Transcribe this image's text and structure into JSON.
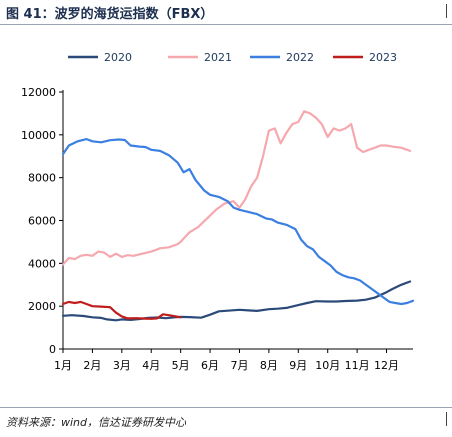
{
  "title": "图 41：波罗的海货运指数（FBX）",
  "source": "资料来源：wind，信达证券研发中心",
  "chart_data": {
    "type": "line",
    "title": "",
    "xlabel": "",
    "ylabel": "",
    "ylim": [
      0,
      12000
    ],
    "yticks": [
      0,
      2000,
      4000,
      6000,
      8000,
      10000,
      12000
    ],
    "xlim": [
      1,
      12.9
    ],
    "xticks": [
      1,
      2,
      3,
      4,
      5,
      6,
      7,
      8,
      9,
      10,
      11,
      12
    ],
    "xtick_labels": [
      "1月",
      "2月",
      "3月",
      "4月",
      "5月",
      "6月",
      "7月",
      "8月",
      "9月",
      "10月",
      "11月",
      "12月"
    ],
    "grid": false,
    "legend_position": "top",
    "series": [
      {
        "name": "2020",
        "color": "#2b4a7a",
        "x": [
          1.0,
          1.3,
          1.7,
          2.0,
          2.3,
          2.5,
          2.8,
          3.0,
          3.3,
          3.6,
          3.9,
          4.2,
          4.5,
          4.8,
          5.0,
          5.3,
          5.7,
          6.0,
          6.3,
          6.6,
          7.0,
          7.3,
          7.6,
          8.0,
          8.3,
          8.6,
          9.0,
          9.3,
          9.6,
          10.0,
          10.3,
          10.6,
          11.0,
          11.3,
          11.6,
          12.0,
          12.2,
          12.5,
          12.8
        ],
        "y": [
          1550,
          1580,
          1540,
          1480,
          1450,
          1380,
          1340,
          1380,
          1360,
          1400,
          1450,
          1470,
          1440,
          1480,
          1500,
          1490,
          1460,
          1600,
          1760,
          1790,
          1830,
          1800,
          1780,
          1860,
          1880,
          1920,
          2050,
          2150,
          2230,
          2220,
          2220,
          2240,
          2260,
          2300,
          2400,
          2650,
          2800,
          3000,
          3150
        ]
      },
      {
        "name": "2021",
        "color": "#f5a8ae",
        "x": [
          1.0,
          1.2,
          1.4,
          1.6,
          1.8,
          2.0,
          2.2,
          2.4,
          2.6,
          2.8,
          3.0,
          3.2,
          3.4,
          3.7,
          4.0,
          4.3,
          4.6,
          4.9,
          5.0,
          5.3,
          5.6,
          5.9,
          6.2,
          6.5,
          6.8,
          7.0,
          7.2,
          7.4,
          7.6,
          7.8,
          8.0,
          8.2,
          8.4,
          8.6,
          8.8,
          9.0,
          9.2,
          9.4,
          9.6,
          9.8,
          10.0,
          10.2,
          10.4,
          10.6,
          10.8,
          11.0,
          11.2,
          11.4,
          11.6,
          11.8,
          12.0,
          12.2,
          12.5,
          12.8
        ],
        "y": [
          3950,
          4250,
          4200,
          4350,
          4400,
          4350,
          4550,
          4500,
          4300,
          4450,
          4300,
          4380,
          4350,
          4450,
          4550,
          4700,
          4750,
          4900,
          5000,
          5450,
          5700,
          6100,
          6500,
          6800,
          6900,
          6600,
          7000,
          7600,
          8000,
          9000,
          10200,
          10300,
          9600,
          10100,
          10500,
          10600,
          11100,
          11000,
          10800,
          10500,
          9900,
          10300,
          10200,
          10300,
          10500,
          9400,
          9200,
          9300,
          9400,
          9500,
          9500,
          9450,
          9400,
          9250
        ]
      },
      {
        "name": "2022",
        "color": "#3b7fe0",
        "x": [
          1.0,
          1.2,
          1.5,
          1.8,
          2.0,
          2.3,
          2.6,
          2.9,
          3.1,
          3.3,
          3.6,
          3.8,
          4.0,
          4.3,
          4.6,
          4.9,
          5.1,
          5.3,
          5.5,
          5.8,
          6.0,
          6.3,
          6.6,
          6.8,
          7.0,
          7.3,
          7.6,
          7.9,
          8.1,
          8.3,
          8.6,
          8.9,
          9.1,
          9.3,
          9.5,
          9.7,
          9.9,
          10.1,
          10.3,
          10.5,
          10.7,
          10.9,
          11.1,
          11.3,
          11.5,
          11.7,
          11.9,
          12.1,
          12.3,
          12.5,
          12.7,
          12.9
        ],
        "y": [
          9100,
          9500,
          9700,
          9800,
          9700,
          9650,
          9750,
          9780,
          9760,
          9500,
          9450,
          9430,
          9300,
          9250,
          9050,
          8700,
          8250,
          8400,
          7900,
          7400,
          7200,
          7100,
          6900,
          6600,
          6500,
          6400,
          6300,
          6100,
          6050,
          5900,
          5800,
          5600,
          5100,
          4800,
          4650,
          4300,
          4100,
          3900,
          3600,
          3450,
          3350,
          3300,
          3200,
          3000,
          2800,
          2600,
          2400,
          2200,
          2150,
          2100,
          2150,
          2250
        ]
      },
      {
        "name": "2023",
        "color": "#c01c1c",
        "x": [
          1.0,
          1.2,
          1.4,
          1.6,
          1.8,
          2.0,
          2.3,
          2.6,
          2.8,
          3.0,
          3.2,
          3.5,
          3.8,
          4.0,
          4.2,
          4.4,
          4.6,
          4.8,
          5.0
        ],
        "y": [
          2100,
          2200,
          2150,
          2200,
          2100,
          2000,
          1980,
          1950,
          1700,
          1520,
          1430,
          1440,
          1420,
          1410,
          1430,
          1620,
          1580,
          1530,
          1480
        ]
      }
    ]
  }
}
